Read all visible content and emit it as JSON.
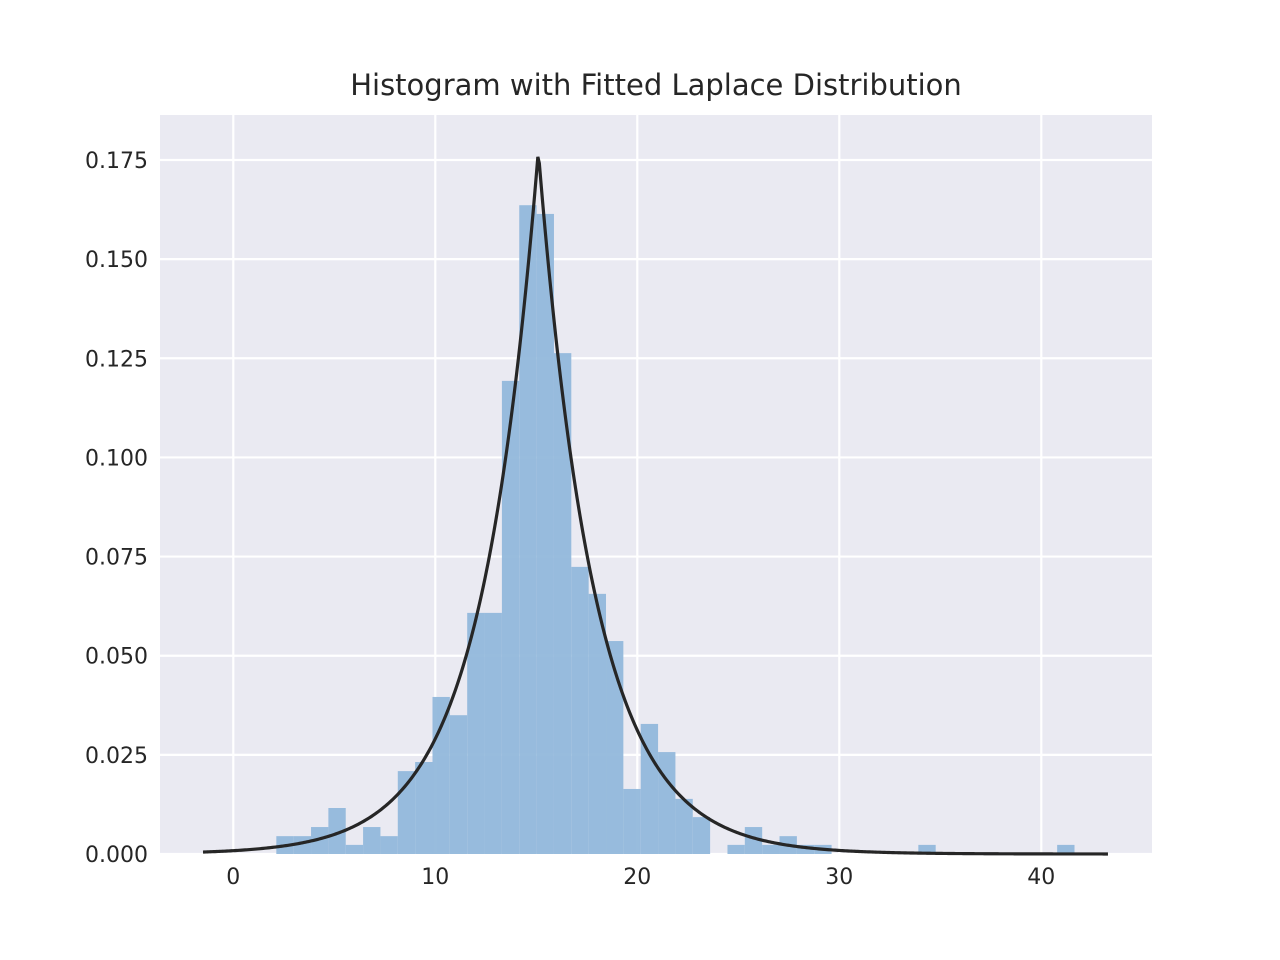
{
  "chart_data": {
    "type": "bar",
    "title": "Histogram with Fitted Laplace Distribution",
    "xlabel": "",
    "ylabel": "",
    "xlim": [
      -3.8,
      45.4
    ],
    "ylim": [
      0.0,
      0.1865
    ],
    "grid": true,
    "legend": null,
    "x_ticks": [
      0,
      10,
      20,
      30,
      40
    ],
    "y_ticks": [
      "0.000",
      "0.025",
      "0.050",
      "0.075",
      "0.100",
      "0.125",
      "0.150",
      "0.175"
    ],
    "histogram": {
      "bin_start": 2.13,
      "bin_width": 0.859,
      "color": "#92b8db",
      "density": [
        0.0045,
        0.0045,
        0.0068,
        0.0116,
        0.0023,
        0.0068,
        0.0045,
        0.0209,
        0.0232,
        0.0396,
        0.035,
        0.0608,
        0.0608,
        0.1193,
        0.1636,
        0.1614,
        0.1263,
        0.0724,
        0.0656,
        0.0537,
        0.0164,
        0.0328,
        0.0257,
        0.0139,
        0.0093,
        0.0,
        0.0023,
        0.0068,
        0.0023,
        0.0045,
        0.0023,
        0.0023,
        0.0,
        0.0,
        0.0,
        0.0,
        0.0,
        0.0023,
        0.0,
        0.0,
        0.0,
        0.0,
        0.0,
        0.0,
        0.0,
        0.0023
      ]
    },
    "fit_line": {
      "type": "line",
      "name": "Laplace pdf",
      "color": "#262626",
      "distribution": "laplace",
      "loc": 15.1,
      "scale": 2.82,
      "x_range": [
        -1.5,
        43.3
      ],
      "peak_density": 0.1773
    }
  },
  "colors": {
    "axes_bg": "#eaeaf2",
    "grid": "#ffffff",
    "bar": "#92b8db",
    "line": "#262626"
  }
}
